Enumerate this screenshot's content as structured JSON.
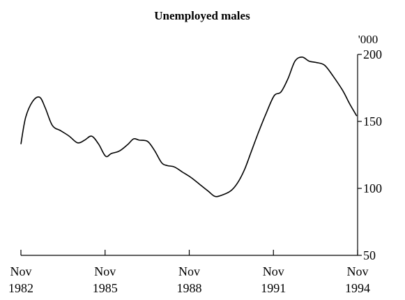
{
  "chart_data": {
    "type": "line",
    "title": "Unemployed males",
    "ylabel": "",
    "xlabel": "",
    "unit": "'000",
    "ylim": [
      50,
      200
    ],
    "yticks": [
      50,
      100,
      150,
      200
    ],
    "xlim": [
      1982.83,
      1994.83
    ],
    "xticks": [
      {
        "x": 1982.83,
        "month": "Nov",
        "year": "1982"
      },
      {
        "x": 1985.83,
        "month": "Nov",
        "year": "1985"
      },
      {
        "x": 1988.83,
        "month": "Nov",
        "year": "1988"
      },
      {
        "x": 1991.83,
        "month": "Nov",
        "year": "1991"
      },
      {
        "x": 1994.83,
        "month": "Nov",
        "year": "1994"
      }
    ],
    "grid": false,
    "series": [
      {
        "x": [
          1982.83,
          1983.0,
          1983.25,
          1983.5,
          1983.7,
          1983.95,
          1984.25,
          1984.55,
          1984.85,
          1985.1,
          1985.35,
          1985.6,
          1985.85,
          1986.05,
          1986.35,
          1986.65,
          1986.85,
          1987.05,
          1987.35,
          1987.6,
          1987.85,
          1988.05,
          1988.3,
          1988.6,
          1988.9,
          1989.2,
          1989.5,
          1989.75,
          1990.0,
          1990.3,
          1990.55,
          1990.8,
          1991.05,
          1991.3,
          1991.55,
          1991.85,
          1992.1,
          1992.35,
          1992.6,
          1992.85,
          1993.1,
          1993.35,
          1993.65,
          1993.95,
          1994.3,
          1994.55,
          1994.8
        ],
        "values": [
          133,
          153,
          165,
          168,
          160,
          147,
          143,
          139,
          134,
          136,
          139,
          133,
          124,
          126,
          128,
          133,
          137,
          136,
          135,
          128,
          119,
          117,
          116,
          112,
          108,
          103,
          98,
          94,
          95,
          98,
          104,
          114,
          128,
          142,
          155,
          169,
          172,
          182,
          195,
          198,
          195,
          194,
          192,
          184,
          173,
          163,
          154
        ]
      }
    ]
  }
}
